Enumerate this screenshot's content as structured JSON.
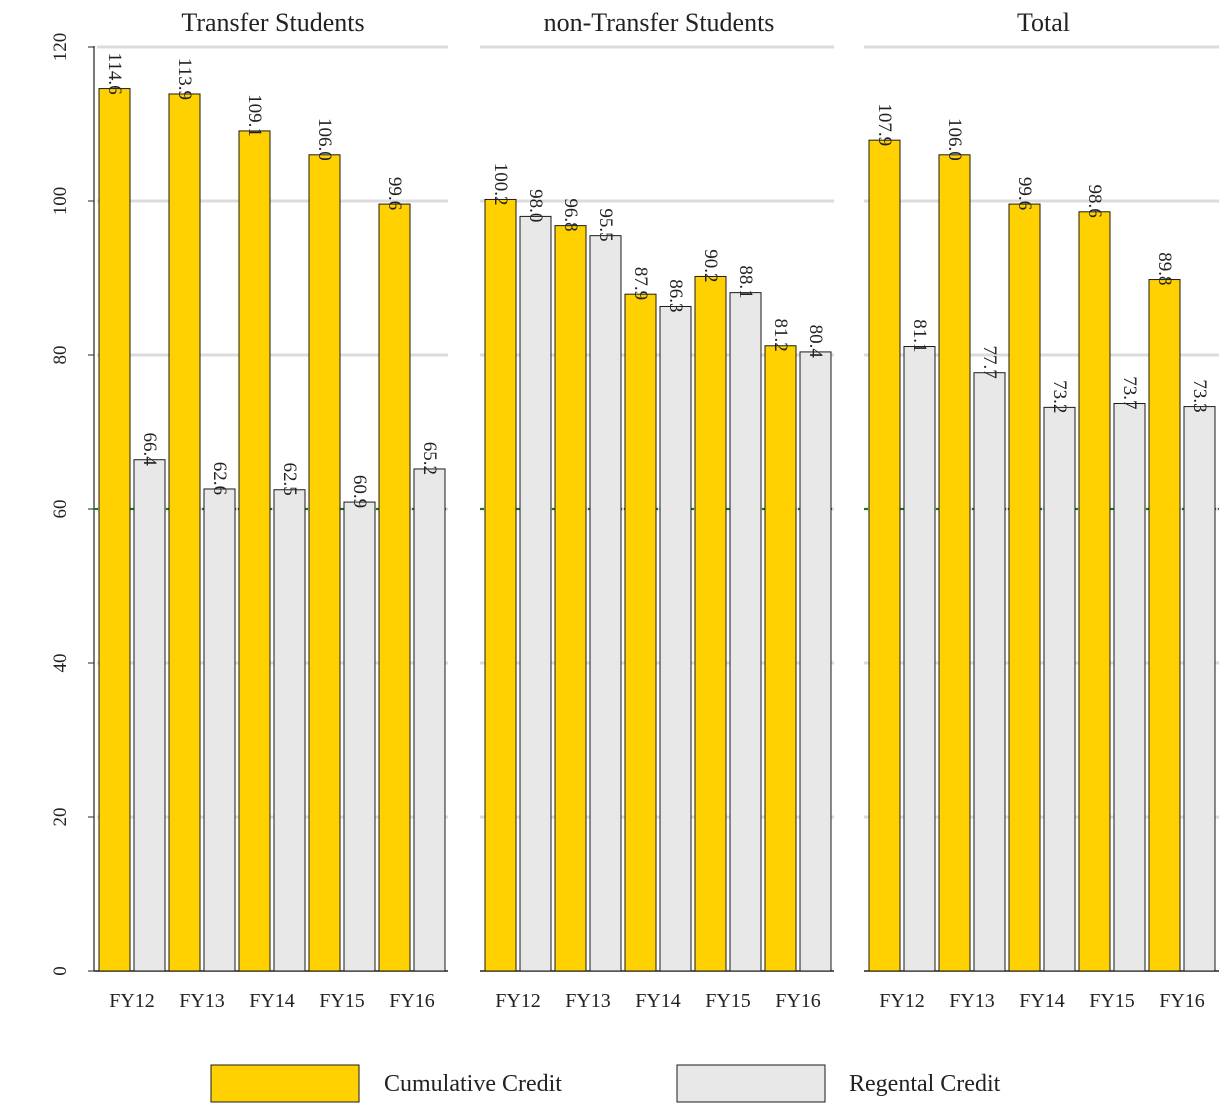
{
  "chart_data": {
    "type": "bar",
    "categories": [
      "FY12",
      "FY13",
      "FY14",
      "FY15",
      "FY16"
    ],
    "y_ticks": [
      "0",
      "20",
      "40",
      "60",
      "80",
      "100",
      "120"
    ],
    "ylim": [
      0,
      120
    ],
    "reference_line": {
      "value": 60,
      "color": "#1a7a1a",
      "style": "dashed"
    },
    "grid": true,
    "legend_position": "bottom",
    "series_styles": [
      {
        "name": "Cumulative Credit",
        "color": "#FFD100"
      },
      {
        "name": "Regental Credit",
        "color": "#E8E8E8"
      }
    ],
    "panels": [
      {
        "title": "Transfer Students",
        "series": [
          {
            "name": "Cumulative Credit",
            "values": [
              114.6,
              113.9,
              109.1,
              106.0,
              99.6
            ]
          },
          {
            "name": "Regental Credit",
            "values": [
              66.4,
              62.6,
              62.5,
              60.9,
              65.2
            ]
          }
        ]
      },
      {
        "title": "non-Transfer Students",
        "series": [
          {
            "name": "Cumulative Credit",
            "values": [
              100.2,
              96.8,
              87.9,
              90.2,
              81.2
            ]
          },
          {
            "name": "Regental Credit",
            "values": [
              98.0,
              95.5,
              86.3,
              88.1,
              80.4
            ]
          }
        ]
      },
      {
        "title": "Total",
        "series": [
          {
            "name": "Cumulative Credit",
            "values": [
              107.9,
              106.0,
              99.6,
              98.6,
              89.8
            ]
          },
          {
            "name": "Regental Credit",
            "values": [
              81.1,
              77.7,
              73.2,
              73.7,
              73.3
            ]
          }
        ]
      }
    ]
  }
}
